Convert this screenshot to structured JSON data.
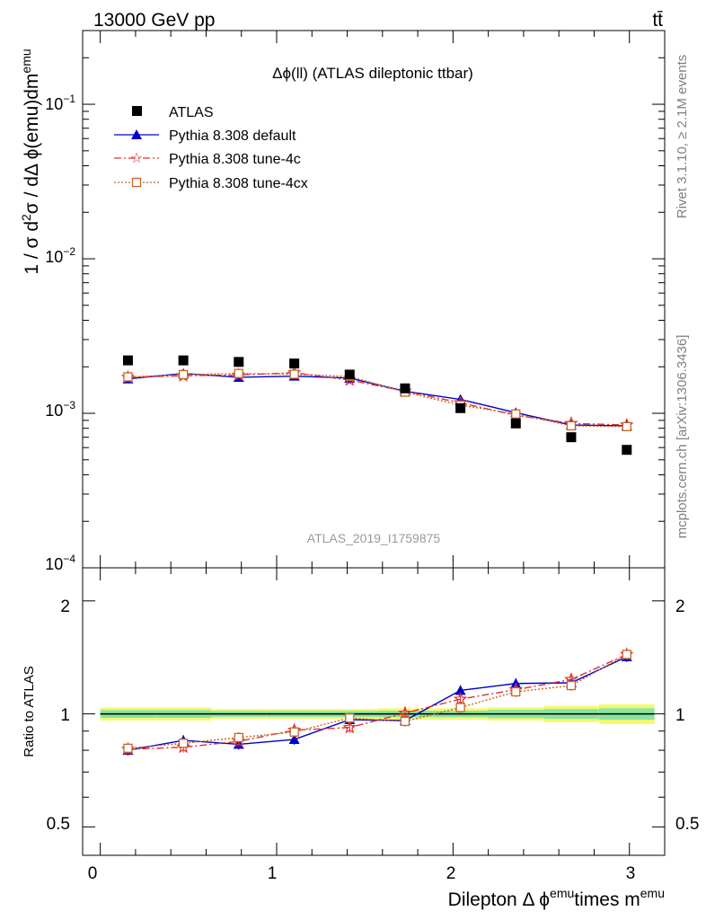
{
  "header": {
    "energy_label": "13000 GeV pp",
    "process_label": "tt̄"
  },
  "side_labels": {
    "rivet": "Rivet 3.1.10, ≥ 2.1M events",
    "source": "mcplots.cern.ch [arXiv:1306.3436]"
  },
  "main_panel": {
    "title": "Δϕ(ll) (ATLAS dileptonic ttbar)",
    "ylabel": "1 / σ  d²σ / dΔ ϕ(emu)dm^emu",
    "watermark": "ATLAS_2019_I1759875",
    "y_ticks": [
      "10⁻⁴",
      "10⁻³",
      "10⁻²",
      "10⁻¹"
    ]
  },
  "ratio_panel": {
    "ylabel": "Ratio to ATLAS",
    "y_ticks": [
      "0.5",
      "1",
      "2"
    ]
  },
  "x_axis": {
    "label": "Dilepton Δ ϕ^emu times m^emu",
    "ticks": [
      "0",
      "1",
      "2",
      "3"
    ]
  },
  "legend": {
    "entries": [
      "ATLAS",
      "Pythia 8.308 default",
      "Pythia 8.308 tune-4c",
      "Pythia 8.308 tune-4cx"
    ]
  },
  "colors": {
    "data": "#000000",
    "default": "#0000cc",
    "tune4c": "#e03030",
    "tune4cx": "#c86420",
    "band_inner": "#88e4a0",
    "band_outer": "#f4f870"
  },
  "chart_data": {
    "type": "line",
    "xlim": [
      -0.1,
      3.2
    ],
    "main_ylim": [
      0.0001,
      0.3
    ],
    "main_yscale": "log",
    "ratio_ylim": [
      0.42,
      2.45
    ],
    "ratio_yscale": "log",
    "x": [
      0.157,
      0.471,
      0.785,
      1.1,
      1.414,
      1.728,
      2.042,
      2.356,
      2.67,
      2.985
    ],
    "series": [
      {
        "name": "ATLAS",
        "marker": "square",
        "values": [
          0.0022,
          0.0022,
          0.00215,
          0.0021,
          0.00178,
          0.00145,
          0.00108,
          0.00086,
          0.0007,
          0.00058
        ],
        "ratio": [
          1,
          1,
          1,
          1,
          1,
          1,
          1,
          1,
          1,
          1
        ],
        "band_inner": [
          0.024,
          0.024,
          0.018,
          0.018,
          0.018,
          0.02,
          0.02,
          0.025,
          0.03,
          0.035
        ],
        "band_outer": [
          0.04,
          0.04,
          0.03,
          0.03,
          0.03,
          0.035,
          0.035,
          0.04,
          0.05,
          0.06
        ]
      },
      {
        "name": "Pythia 8.308 default",
        "marker": "triangle",
        "line": "solid",
        "values": [
          0.00167,
          0.00181,
          0.00171,
          0.00174,
          0.00169,
          0.00139,
          0.00123,
          0.00101,
          0.00084,
          0.00083
        ],
        "ratio": [
          0.8,
          0.85,
          0.83,
          0.855,
          0.965,
          0.96,
          1.155,
          1.205,
          1.21,
          1.42
        ]
      },
      {
        "name": "Pythia 8.308 tune-4c",
        "marker": "star",
        "line": "dashdot",
        "values": [
          0.00171,
          0.00175,
          0.00177,
          0.00183,
          0.00164,
          0.00139,
          0.00117,
          0.00097,
          0.00086,
          0.00084
        ],
        "ratio": [
          0.805,
          0.815,
          0.845,
          0.905,
          0.92,
          1.005,
          1.095,
          1.16,
          1.235,
          1.44
        ]
      },
      {
        "name": "Pythia 8.308 tune-4cx",
        "marker": "open-square",
        "line": "dotted",
        "values": [
          0.00172,
          0.00178,
          0.00181,
          0.00179,
          0.00173,
          0.00137,
          0.00113,
          0.00099,
          0.00083,
          0.00082
        ],
        "ratio": [
          0.81,
          0.835,
          0.865,
          0.895,
          0.975,
          0.955,
          1.04,
          1.145,
          1.19,
          1.44
        ]
      }
    ]
  }
}
